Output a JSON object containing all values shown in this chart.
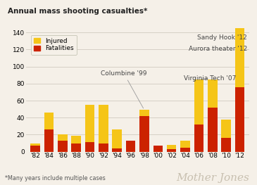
{
  "title": "Annual mass shooting casualties*",
  "footnote": "*Many years include multiple cases",
  "watermark": "Mother Jones",
  "years": [
    "'82",
    "'84",
    "'86",
    "'88",
    "'90",
    "'92",
    "'94",
    "'96",
    "'98",
    "'00",
    "'02",
    "'04",
    "'06",
    "'08",
    "'10",
    "'12"
  ],
  "fatalities": [
    7,
    26,
    13,
    10,
    11,
    10,
    4,
    13,
    42,
    7,
    3,
    5,
    32,
    52,
    16,
    76
  ],
  "injured": [
    3,
    20,
    7,
    9,
    44,
    45,
    22,
    0,
    7,
    0,
    5,
    8,
    53,
    33,
    22,
    69
  ],
  "injured_color": "#f5c518",
  "fatalities_color": "#cc2200",
  "bg_color": "#f5f0e8",
  "ylim": [
    0,
    150
  ],
  "yticks": [
    0,
    20,
    40,
    60,
    80,
    100,
    120,
    140
  ],
  "columbine_idx": 8,
  "columbine_label": "Columbine '99",
  "vt_idx": 12,
  "vt_label": "Virginia Tech '07",
  "sandy_hook_label": "Sandy Hook '12",
  "aurora_label": "Aurora theater '12"
}
